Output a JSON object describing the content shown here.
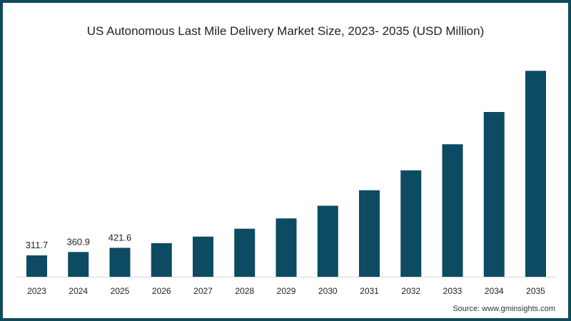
{
  "chart_data": {
    "type": "bar",
    "title": "US Autonomous Last Mile Delivery Market Size, 2023- 2035 (USD Million)",
    "xlabel": "",
    "ylabel": "",
    "categories": [
      "2023",
      "2024",
      "2025",
      "2026",
      "2027",
      "2028",
      "2029",
      "2030",
      "2031",
      "2032",
      "2033",
      "2034",
      "2035"
    ],
    "values": [
      311.7,
      360.9,
      421.6,
      490,
      585,
      700,
      850,
      1035,
      1260,
      1550,
      1930,
      2400,
      3000
    ],
    "data_labels": [
      "311.7",
      "360.9",
      "421.6",
      null,
      null,
      null,
      null,
      null,
      null,
      null,
      null,
      null,
      null
    ],
    "ylim": [
      0,
      3100
    ],
    "grid": false,
    "bar_color": "#0d4a63",
    "source": "Source: www.gminsights.com"
  }
}
